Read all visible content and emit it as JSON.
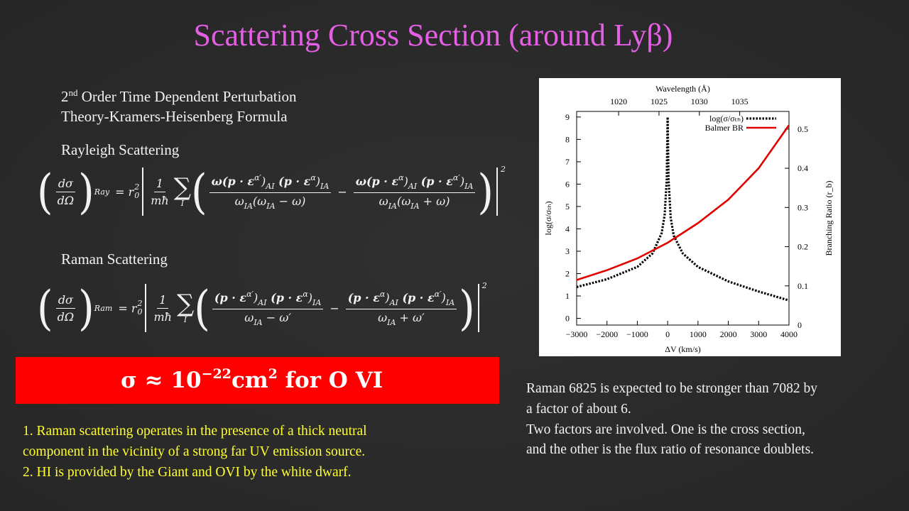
{
  "title": "Scattering Cross Section (around Lyβ)",
  "intro": {
    "line1_base": "2",
    "line1_sup": "nd",
    "line1_rest": " Order Time Dependent Perturbation",
    "line2": "Theory-Kramers-Heisenberg Formula"
  },
  "rayleigh": {
    "heading": "Rayleigh Scattering",
    "equation": {
      "lhs_num": "dσ",
      "lhs_den": "dΩ",
      "lhs_sub": "Ray",
      "equals": "= r",
      "r_sub": "0",
      "r_sup": "2",
      "coef_num": "1",
      "coef_den": "mħ",
      "sum": "∑",
      "sum_index": "I",
      "term1_num": [
        "ω(p · ε",
        "α′",
        ")",
        "AI",
        " (p · ε",
        "α",
        ")",
        "IA"
      ],
      "term1_den": [
        "ω",
        "IA",
        "(ω",
        "IA",
        " − ω)"
      ],
      "minus": "−",
      "term2_num": [
        "ω(p · ε",
        "α",
        ")",
        "AI",
        " (p · ε",
        "α′",
        ")",
        "IA"
      ],
      "term2_den": [
        "ω",
        "IA",
        "(ω",
        "IA",
        " + ω)"
      ],
      "power": "2"
    }
  },
  "raman": {
    "heading": "Raman Scattering",
    "equation": {
      "lhs_num": "dσ",
      "lhs_den": "dΩ",
      "lhs_sub": "Ram",
      "equals": "= r",
      "r_sub": "0",
      "r_sup": "2",
      "coef_num": "1",
      "coef_den": "mħ",
      "sum": "∑",
      "sum_index": "I",
      "term1_num": [
        "(p · ε",
        "α′",
        ")",
        "AI",
        " (p · ε",
        "α",
        ")",
        "IA"
      ],
      "term1_den": [
        "ω",
        "IA",
        " − ω′"
      ],
      "minus": "−",
      "term2_num": [
        "(p · ε",
        "α",
        ")",
        "AI",
        " (p · ε",
        "α′",
        ")",
        "IA"
      ],
      "term2_den": [
        "ω",
        "IA",
        " + ω′"
      ],
      "power": "2"
    }
  },
  "highlight": {
    "text": [
      "σ ≈ 10",
      "−22",
      "cm",
      "2",
      " for O VI"
    ]
  },
  "notes": {
    "lines": [
      "1. Raman scattering operates in the presence of a thick neutral",
      "component in the vicinity of a strong far UV emission source.",
      "2. HI is provided by the Giant and OVI by the white dwarf."
    ]
  },
  "comment": {
    "lines": [
      "Raman 6825 is expected to be stronger than 7082 by",
      "a factor of about 6.",
      "Two factors are involved. One is the cross section,",
      "and the other is the flux ratio of resonance doublets."
    ]
  },
  "chart_data": {
    "type": "line",
    "x_label": "ΔV (km/s)",
    "x2_label": "Wavelength (Å)",
    "y_label": "log(σ/σₜₕ)",
    "y2_label": "Branching Ratio (r_b)",
    "xlim": [
      -3000,
      4000
    ],
    "xticks": [
      {
        "value": -3000,
        "label": "−3000"
      },
      {
        "value": -2000,
        "label": "−2000"
      },
      {
        "value": -1000,
        "label": "−1000"
      },
      0,
      1000,
      2000,
      3000,
      4000
    ],
    "x2lim": [
      1014.8,
      1041.1
    ],
    "x2ticks": [
      1020,
      1025,
      1030,
      1035
    ],
    "ylim": [
      -0.3,
      9.25
    ],
    "yticks": [
      0,
      1,
      2,
      3,
      4,
      5,
      6,
      7,
      8,
      9
    ],
    "y2lim": [
      0,
      0.545
    ],
    "y2ticks": [
      0,
      0.1,
      0.2,
      0.3,
      0.4,
      0.5
    ],
    "grid": false,
    "legend": "upper right",
    "series": [
      {
        "name": "log(σ/σₜₕ)",
        "color": "#000000",
        "x": [
          -3000,
          -2000,
          -1000,
          -500,
          -200,
          -100,
          -30,
          0,
          30,
          100,
          200,
          500,
          1000,
          2000,
          3000,
          4000
        ],
        "values": [
          1.4,
          1.75,
          2.3,
          2.9,
          3.8,
          4.6,
          6.2,
          9,
          6.2,
          4.5,
          3.7,
          2.9,
          2.3,
          1.65,
          1.2,
          0.8
        ]
      },
      {
        "name": "Balmer BR",
        "color": "#e00000",
        "axis": "y2",
        "x": [
          -3000,
          -2000,
          -1000,
          0,
          1000,
          2000,
          3000,
          4000
        ],
        "values": [
          0.115,
          0.14,
          0.17,
          0.21,
          0.26,
          0.32,
          0.4,
          0.51
        ]
      }
    ]
  }
}
